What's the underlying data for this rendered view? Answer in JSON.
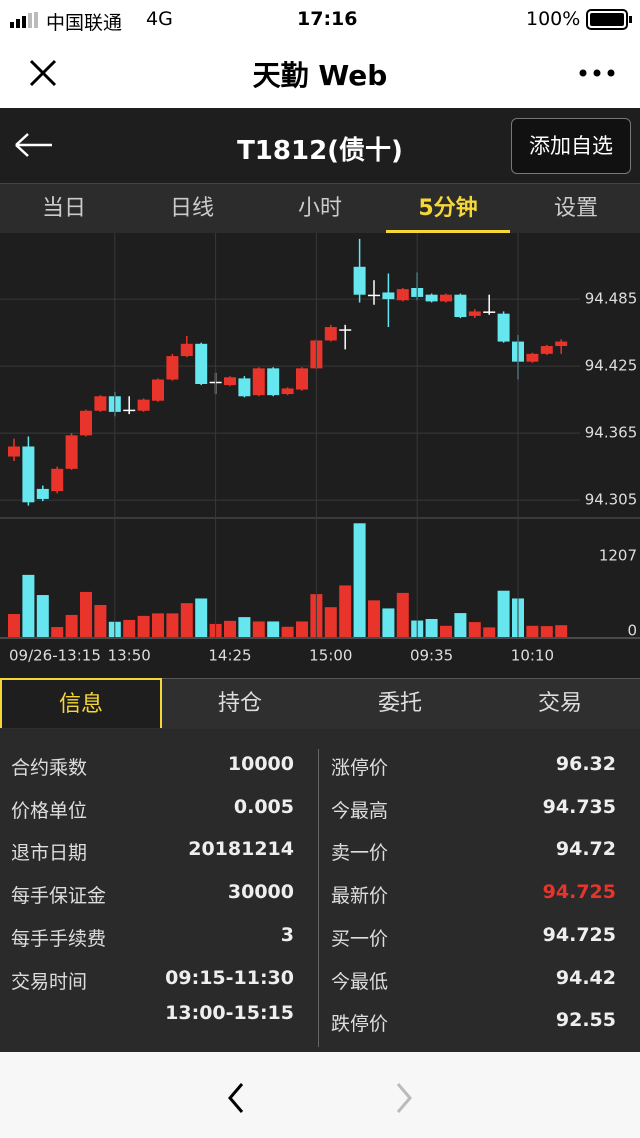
{
  "status_bar": {
    "carrier": "中国联通",
    "network": "4G",
    "time": "17:16",
    "battery": "100%"
  },
  "nav": {
    "title": "天勤 Web"
  },
  "header": {
    "title": "T1812(债十)",
    "button": "添加自选"
  },
  "tabs": {
    "items": [
      "当日",
      "日线",
      "小时",
      "5分钟",
      "设置"
    ],
    "active": 3
  },
  "chart_data": [
    {
      "type": "candlestick",
      "categories": [
        "09/26-13:15",
        null,
        null,
        null,
        null,
        null,
        null,
        null,
        "13:50",
        null,
        null,
        null,
        null,
        null,
        null,
        "14:25",
        null,
        null,
        null,
        null,
        null,
        null,
        "15:00",
        null,
        null,
        null,
        null,
        null,
        null,
        "09:35",
        null,
        null,
        null,
        null,
        null,
        null,
        "10:10",
        null,
        null
      ],
      "open": [
        94.344,
        94.353,
        94.315,
        94.313,
        94.333,
        94.363,
        94.385,
        94.398,
        94.386,
        94.385,
        94.394,
        94.413,
        94.434,
        94.445,
        94.411,
        94.408,
        94.414,
        94.399,
        94.423,
        94.4,
        94.404,
        94.423,
        94.448,
        94.458,
        94.514,
        94.489,
        94.491,
        94.484,
        94.495,
        94.489,
        94.483,
        94.489,
        94.47,
        94.474,
        94.472,
        94.447,
        94.429,
        94.436,
        94.443
      ],
      "high": [
        94.36,
        94.362,
        94.318,
        94.335,
        94.365,
        94.386,
        94.399,
        94.402,
        94.398,
        94.396,
        94.414,
        94.436,
        94.452,
        94.446,
        94.419,
        94.416,
        94.416,
        94.424,
        94.424,
        94.406,
        94.424,
        94.449,
        94.462,
        94.462,
        94.539,
        94.502,
        94.508,
        94.495,
        94.509,
        94.49,
        94.49,
        94.49,
        94.476,
        94.489,
        94.474,
        94.453,
        94.437,
        94.444,
        94.449
      ],
      "low": [
        94.34,
        94.3,
        94.304,
        94.311,
        94.332,
        94.362,
        94.384,
        94.38,
        94.382,
        94.384,
        94.393,
        94.412,
        94.433,
        94.408,
        94.4,
        94.407,
        94.397,
        94.398,
        94.398,
        94.399,
        94.403,
        94.422,
        94.447,
        94.44,
        94.482,
        94.48,
        94.46,
        94.483,
        94.484,
        94.482,
        94.482,
        94.468,
        94.468,
        94.471,
        94.446,
        94.413,
        94.428,
        94.435,
        94.436
      ],
      "close": [
        94.353,
        94.303,
        94.306,
        94.333,
        94.363,
        94.385,
        94.398,
        94.384,
        94.386,
        94.395,
        94.413,
        94.434,
        94.445,
        94.409,
        94.411,
        94.415,
        94.398,
        94.423,
        94.399,
        94.405,
        94.423,
        94.448,
        94.46,
        94.458,
        94.489,
        94.489,
        94.485,
        94.494,
        94.487,
        94.483,
        94.489,
        94.469,
        94.474,
        94.474,
        94.447,
        94.429,
        94.436,
        94.443,
        94.447
      ],
      "up_color": "#e8342a",
      "down_color": "#66e7f0",
      "flat_color": "#ffffff",
      "ylim": [
        94.297,
        94.538
      ],
      "yticks": [
        94.305,
        94.365,
        94.425,
        94.485
      ],
      "grid": true
    },
    {
      "type": "bar",
      "values": [
        370,
        1000,
        675,
        160,
        355,
        725,
        515,
        245,
        275,
        340,
        380,
        380,
        545,
        620,
        210,
        260,
        320,
        250,
        250,
        165,
        250,
        690,
        480,
        830,
        1830,
        590,
        460,
        710,
        265,
        290,
        180,
        385,
        240,
        155,
        745,
        620,
        180,
        175,
        190
      ],
      "ylim": [
        0,
        1883
      ],
      "yticks": [
        0,
        1207
      ]
    }
  ],
  "info_tabs": {
    "items": [
      "信息",
      "持仓",
      "委托",
      "交易"
    ],
    "active": 0
  },
  "info": {
    "left": [
      [
        "合约乘数",
        "10000"
      ],
      [
        "价格单位",
        "0.005"
      ],
      [
        "退市日期",
        "20181214"
      ],
      [
        "每手保证金",
        "30000"
      ],
      [
        "每手手续费",
        "3"
      ],
      [
        "交易时间",
        "09:15-11:30",
        "13:00-15:15"
      ]
    ],
    "right": [
      [
        "涨停价",
        "96.32"
      ],
      [
        "今最高",
        "94.735"
      ],
      [
        "卖一价",
        "94.72"
      ],
      [
        "最新价",
        "94.725"
      ],
      [
        "买一价",
        "94.725"
      ],
      [
        "今最低",
        "94.42"
      ],
      [
        "跌停价",
        "92.55"
      ]
    ],
    "highlight_row": 3,
    "highlight_color": "#e8342a"
  }
}
